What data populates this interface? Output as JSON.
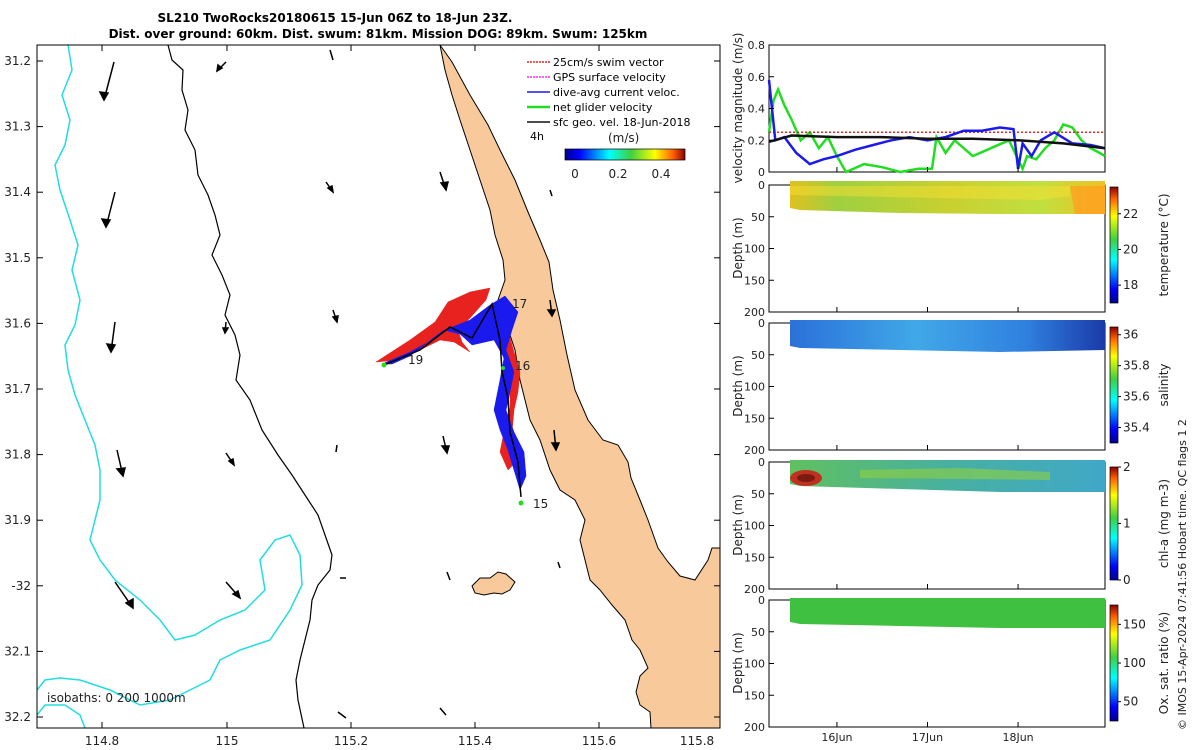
{
  "title": {
    "line1": "SL210 TwoRocks20180615 15-Jun 06Z to 18-Jun 23Z.",
    "line2": "Dist. over ground: 60km. Dist. swum: 81km. Mission DOG: 89km. Swum: 125km"
  },
  "colors": {
    "land": "#f8c99a",
    "coast": "#000000",
    "bath200": "#000000",
    "bath1000": "#22dde0",
    "swim": "#e8231f",
    "gps": "#ee33ee",
    "dac": "#1a1aee",
    "net": "#22dd22",
    "geo": "#111111"
  },
  "map": {
    "lon_ticks": [
      "114.8",
      "115",
      "115.2",
      "115.4",
      "115.6",
      "115.8"
    ],
    "lat_ticks": [
      "31.2",
      "31.3",
      "31.4",
      "31.5",
      "31.6",
      "31.7",
      "31.8",
      "31.9",
      "-32",
      "32.1",
      "32.2"
    ],
    "legend": [
      "25cm/s swim vector",
      "GPS surface velocity",
      "dive-avg current veloc.",
      "net glider velocity",
      "sfc geo. vel. 18-Jun-2018"
    ],
    "legend_time": "4h",
    "colorbar_label": "(m/s)",
    "colorbar_ticks": [
      "0",
      "0.2",
      "0.4"
    ],
    "isobaths_label": "isobaths: 0   200  1000m",
    "day_labels": [
      "15",
      "16",
      "17",
      "19"
    ]
  },
  "chart_data": [
    {
      "type": "line",
      "title": "",
      "xlabel": "",
      "ylabel": "velocity magnitude (m/s)",
      "ylim": [
        0,
        0.8
      ],
      "y_ticks": [
        "0",
        "0.2",
        "0.4",
        "0.6",
        "0.8"
      ],
      "x_range_days": [
        15.25,
        18.96
      ],
      "series": [
        {
          "name": "dive-avg current veloc.",
          "x": [
            15.25,
            15.32,
            15.42,
            15.55,
            15.7,
            15.85,
            16.0,
            16.2,
            16.4,
            16.6,
            16.8,
            17.0,
            17.2,
            17.4,
            17.6,
            17.8,
            17.95,
            18.0,
            18.05,
            18.15,
            18.25,
            18.4,
            18.6,
            18.8,
            18.96
          ],
          "y": [
            0.58,
            0.2,
            0.22,
            0.12,
            0.05,
            0.08,
            0.1,
            0.14,
            0.17,
            0.2,
            0.22,
            0.2,
            0.22,
            0.26,
            0.26,
            0.28,
            0.27,
            0.02,
            0.18,
            0.1,
            0.2,
            0.25,
            0.18,
            0.17,
            0.15
          ]
        },
        {
          "name": "net glider velocity",
          "x": [
            15.25,
            15.3,
            15.35,
            15.42,
            15.5,
            15.6,
            15.7,
            15.8,
            15.9,
            16.0,
            16.1,
            16.3,
            16.5,
            16.7,
            16.9,
            17.05,
            17.1,
            17.2,
            17.3,
            17.5,
            17.7,
            17.9,
            18.05,
            18.1,
            18.2,
            18.3,
            18.4,
            18.5,
            18.6,
            18.7,
            18.8,
            18.9,
            18.96
          ],
          "y": [
            0.25,
            0.45,
            0.52,
            0.42,
            0.33,
            0.2,
            0.25,
            0.15,
            0.22,
            0.1,
            0.0,
            0.05,
            0.03,
            0.0,
            0.02,
            0.02,
            0.22,
            0.12,
            0.2,
            0.1,
            0.15,
            0.2,
            0.02,
            0.1,
            0.08,
            0.15,
            0.2,
            0.3,
            0.28,
            0.2,
            0.15,
            0.12,
            0.1
          ]
        },
        {
          "name": "25cm/s swim vector",
          "x": [
            15.25,
            18.96
          ],
          "y": [
            0.25,
            0.25
          ]
        },
        {
          "name": "sfc geo. vel. 18-Jun-2018",
          "x": [
            15.25,
            15.5,
            16.0,
            16.5,
            17.0,
            17.5,
            18.0,
            18.5,
            18.96
          ],
          "y": [
            0.19,
            0.23,
            0.22,
            0.22,
            0.21,
            0.21,
            0.2,
            0.18,
            0.15
          ]
        }
      ]
    },
    {
      "type": "heatmap",
      "ylabel": "Depth (m)",
      "ylim": [
        0,
        200
      ],
      "y_ticks": [
        "0",
        "50",
        "100",
        "150",
        "200"
      ],
      "colorbar_label": "temperature (°C)",
      "colorbar_ticks": [
        "18",
        "20",
        "22"
      ],
      "colorbar_range": [
        17,
        23.5
      ]
    },
    {
      "type": "heatmap",
      "ylabel": "Depth (m)",
      "ylim": [
        0,
        200
      ],
      "y_ticks": [
        "0",
        "50",
        "100",
        "150",
        "200"
      ],
      "colorbar_label": "salinity",
      "colorbar_ticks": [
        "35.4",
        "35.6",
        "35.8",
        "36"
      ],
      "colorbar_range": [
        35.3,
        36.05
      ]
    },
    {
      "type": "heatmap",
      "ylabel": "Depth (m)",
      "ylim": [
        0,
        200
      ],
      "y_ticks": [
        "0",
        "50",
        "100",
        "150",
        "200"
      ],
      "colorbar_label": "chl-a (mg m-3)",
      "colorbar_ticks": [
        "0",
        "1",
        "2"
      ],
      "colorbar_range": [
        0,
        2
      ]
    },
    {
      "type": "heatmap",
      "ylabel": "Depth (m)",
      "ylim": [
        0,
        200
      ],
      "y_ticks": [
        "0",
        "50",
        "100",
        "150",
        "200"
      ],
      "colorbar_label": "Ox. sat. ratio (%)",
      "colorbar_ticks": [
        "50",
        "100",
        "150"
      ],
      "colorbar_range": [
        25,
        175
      ],
      "x_ticks": [
        "16Jun",
        "17Jun",
        "18Jun"
      ]
    }
  ],
  "credit": "© IMOS 15-Apr-2024 07:41:56 Hobart time. QC flags 1  2"
}
